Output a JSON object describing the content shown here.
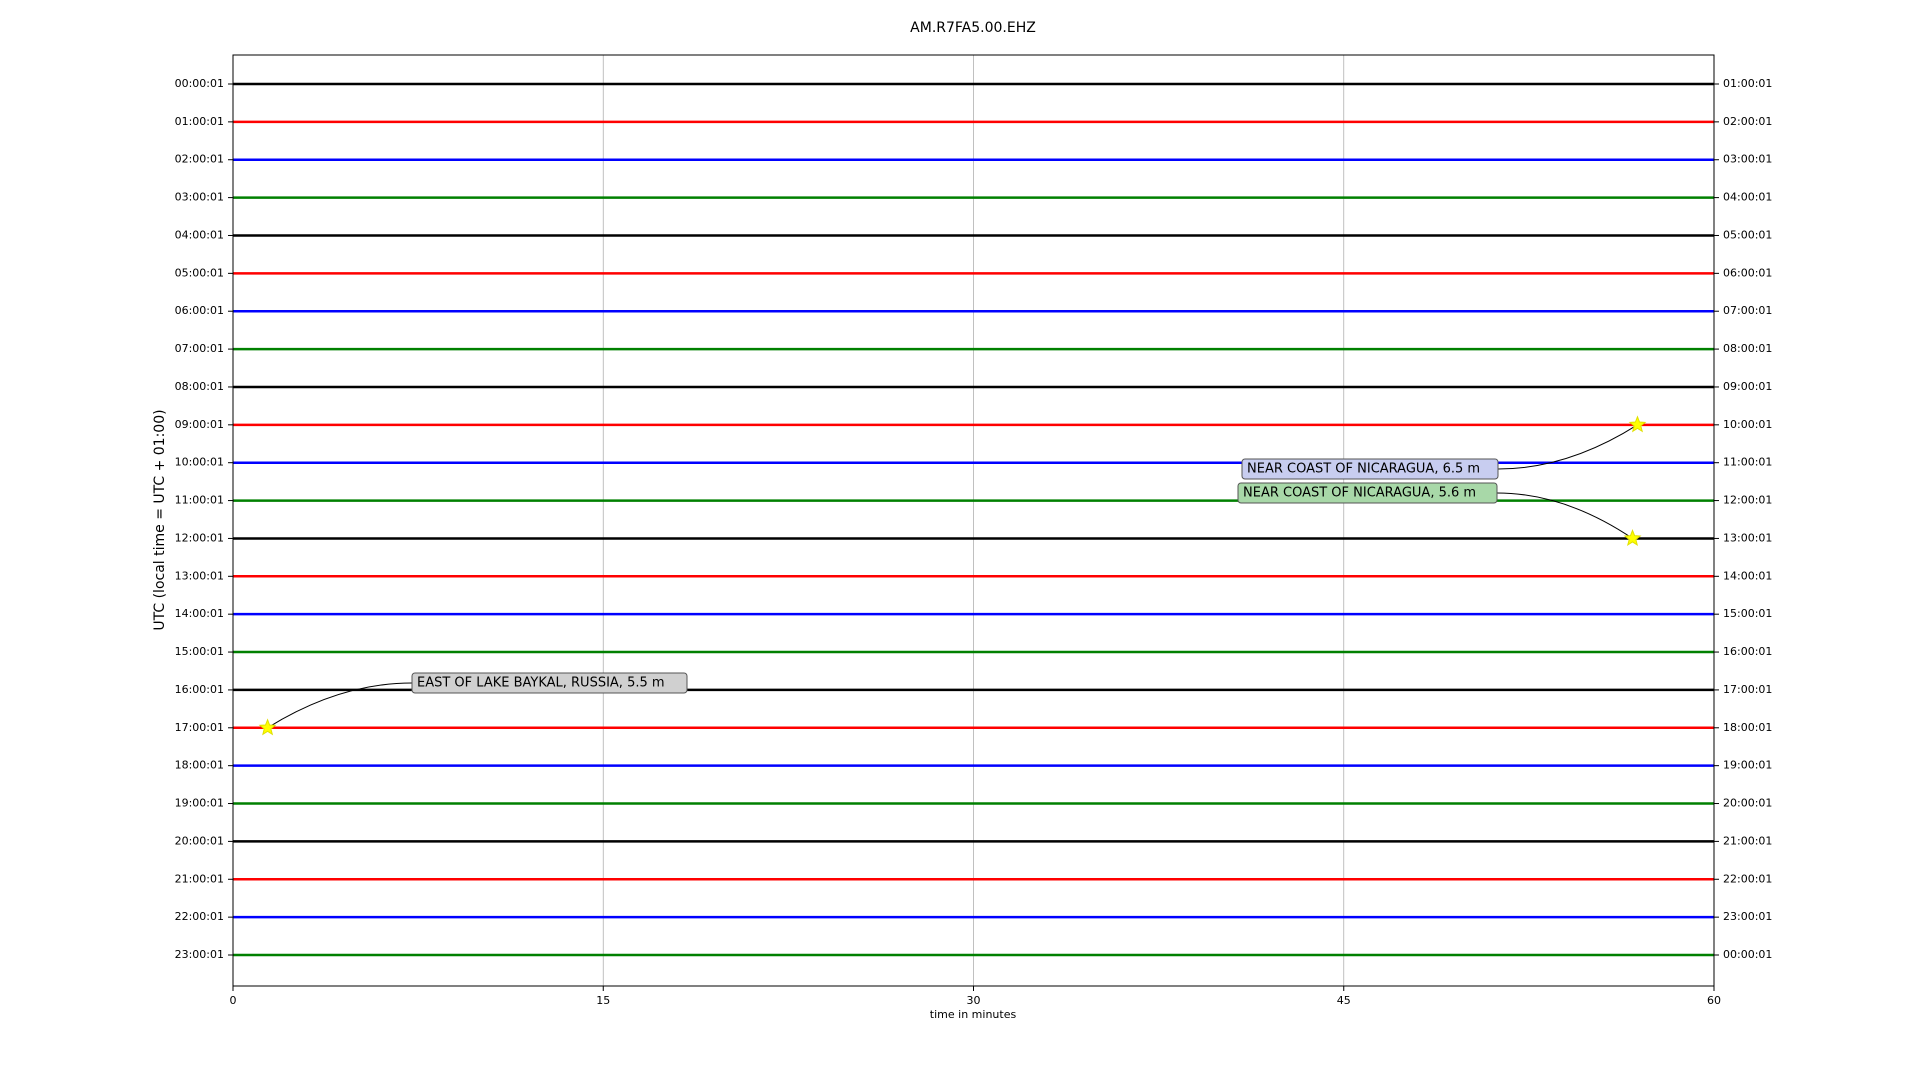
{
  "chart_data": {
    "type": "helicorder",
    "title": "AM.R7FA5.00.EHZ",
    "xlabel": "time in minutes",
    "ylabel": "UTC (local time = UTC + 01:00)",
    "xlim": [
      0,
      60
    ],
    "xticks": [
      0,
      15,
      30,
      45,
      60
    ],
    "grid": true,
    "trace_colors": [
      "#000000",
      "#ff0000",
      "#0000ff",
      "#008000"
    ],
    "rows": [
      {
        "left": "00:00:01",
        "right": "01:00:01"
      },
      {
        "left": "01:00:01",
        "right": "02:00:01"
      },
      {
        "left": "02:00:01",
        "right": "03:00:01"
      },
      {
        "left": "03:00:01",
        "right": "04:00:01"
      },
      {
        "left": "04:00:01",
        "right": "05:00:01"
      },
      {
        "left": "05:00:01",
        "right": "06:00:01"
      },
      {
        "left": "06:00:01",
        "right": "07:00:01"
      },
      {
        "left": "07:00:01",
        "right": "08:00:01"
      },
      {
        "left": "08:00:01",
        "right": "09:00:01"
      },
      {
        "left": "09:00:01",
        "right": "10:00:01"
      },
      {
        "left": "10:00:01",
        "right": "11:00:01"
      },
      {
        "left": "11:00:01",
        "right": "12:00:01"
      },
      {
        "left": "12:00:01",
        "right": "13:00:01"
      },
      {
        "left": "13:00:01",
        "right": "14:00:01"
      },
      {
        "left": "14:00:01",
        "right": "15:00:01"
      },
      {
        "left": "15:00:01",
        "right": "16:00:01"
      },
      {
        "left": "16:00:01",
        "right": "17:00:01"
      },
      {
        "left": "17:00:01",
        "right": "18:00:01"
      },
      {
        "left": "18:00:01",
        "right": "19:00:01"
      },
      {
        "left": "19:00:01",
        "right": "20:00:01"
      },
      {
        "left": "20:00:01",
        "right": "21:00:01"
      },
      {
        "left": "21:00:01",
        "right": "22:00:01"
      },
      {
        "left": "22:00:01",
        "right": "23:00:01"
      },
      {
        "left": "23:00:01",
        "right": "00:00:01"
      }
    ],
    "events": [
      {
        "text": "NEAR COAST OF NICARAGUA, 6.5 m",
        "x": 56.9,
        "row": 9,
        "box_color": "#c8cdf0"
      },
      {
        "text": "NEAR COAST OF NICARAGUA, 5.6 m",
        "x": 56.7,
        "row": 12,
        "box_color": "#a8d8a8"
      },
      {
        "text": "EAST OF LAKE BAYKAL, RUSSIA, 5.5 m",
        "x": 1.4,
        "row": 17,
        "box_color": "#d0d0d0"
      }
    ]
  }
}
